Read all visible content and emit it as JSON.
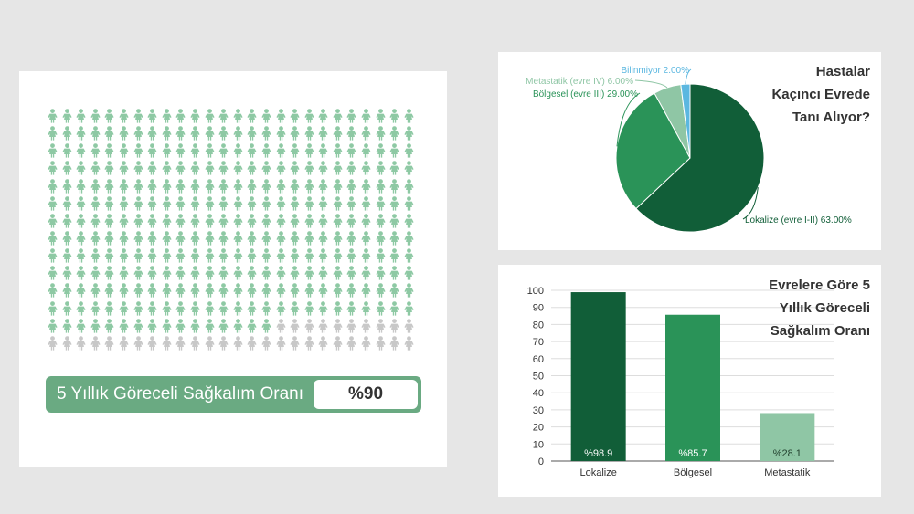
{
  "survival_panel": {
    "label": "5 Yıllık Göreceli Sağkalım Oranı",
    "value": "%90",
    "grid": {
      "rows": 14,
      "columns": 26,
      "highlighted_fraction": 0.9
    },
    "colors": {
      "highlight": "#8ec9a4",
      "rest": "#c8c8c8",
      "bar": "#6aaa82"
    },
    "icon": "person-icon"
  },
  "pie_panel": {
    "title_lines": [
      "Hastalar",
      "Kaçıncı Evrede",
      "Tanı Alıyor?"
    ]
  },
  "bar_panel": {
    "title_lines": [
      "Evrelere Göre 5",
      "Yıllık Göreceli",
      "Sağkalım Oranı"
    ]
  },
  "chart_data": [
    {
      "type": "pie",
      "slices": [
        {
          "label": "Lokalize (evre I-II) 63.00%",
          "value": 63.0,
          "color": "#115e38"
        },
        {
          "label": "Bölgesel (evre III) 29.00%",
          "value": 29.0,
          "color": "#2a9358"
        },
        {
          "label": "Metastatik (evre IV) 6.00%",
          "value": 6.0,
          "color": "#8fc6a5"
        },
        {
          "label": "Bilinmiyor 2.00%",
          "value": 2.0,
          "color": "#5bb7e0"
        }
      ]
    },
    {
      "type": "bar",
      "categories": [
        "Lokalize",
        "Bölgesel",
        "Metastatik"
      ],
      "values": [
        98.9,
        85.7,
        28.1
      ],
      "value_labels": [
        "%98.9",
        "%85.7",
        "%28.1"
      ],
      "colors": [
        "#115e38",
        "#2a9358",
        "#8fc6a5"
      ],
      "ylim": [
        0,
        100
      ],
      "yticks": [
        0,
        10,
        20,
        30,
        40,
        50,
        60,
        70,
        80,
        90,
        100
      ],
      "grid": true
    }
  ]
}
